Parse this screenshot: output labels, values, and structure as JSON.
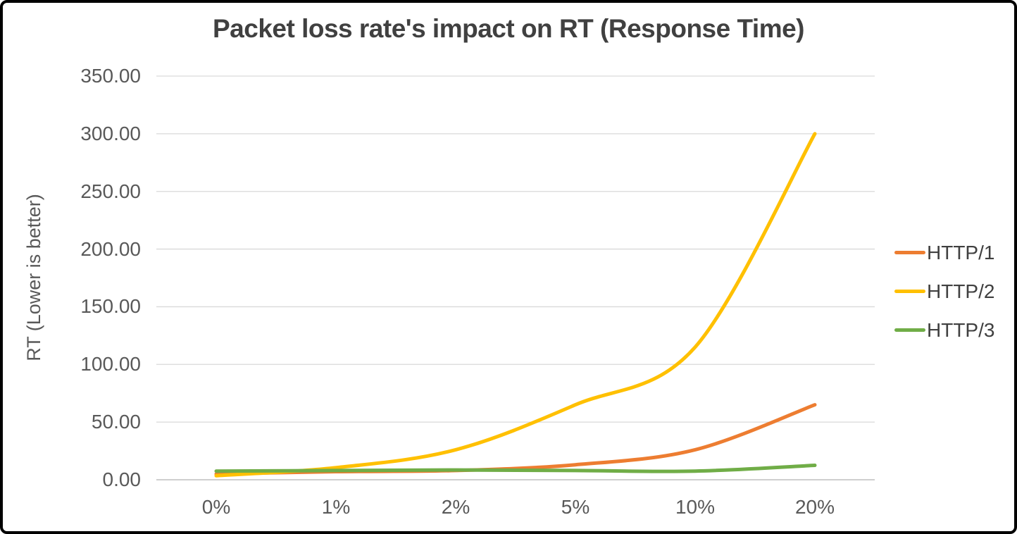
{
  "window": {
    "background": "#FFFFFF",
    "border_color": "#000000"
  },
  "chart_data": {
    "type": "line",
    "title": "Packet loss rate's impact on RT (Response Time)",
    "ylabel": "RT (Lower is better)",
    "xlabel": "",
    "categories": [
      "0%",
      "1%",
      "2%",
      "5%",
      "10%",
      "20%"
    ],
    "series": [
      {
        "name": "HTTP/1",
        "color": "#ED7D31",
        "values": [
          5,
          7,
          8,
          13,
          26,
          65
        ]
      },
      {
        "name": "HTTP/2",
        "color": "#FFC000",
        "values": [
          3.5,
          10.5,
          26,
          65,
          115,
          300
        ]
      },
      {
        "name": "HTTP/3",
        "color": "#70AD47",
        "values": [
          7.5,
          8,
          8.5,
          8,
          7.5,
          12.5
        ]
      }
    ],
    "y_axis": {
      "min": 0,
      "max": 350,
      "step": 50,
      "ticks": [
        "0.00",
        "50.00",
        "100.00",
        "150.00",
        "200.00",
        "250.00",
        "300.00",
        "350.00"
      ]
    },
    "legend_position": "right",
    "grid": true,
    "smooth_lines": true,
    "colors": {
      "title_text": "#404040",
      "tick_text": "#595959",
      "axis_title_text": "#595959",
      "legend_text": "#404040",
      "gridline": "#D9D9D9",
      "axis_line": "#BFBFBF"
    }
  }
}
